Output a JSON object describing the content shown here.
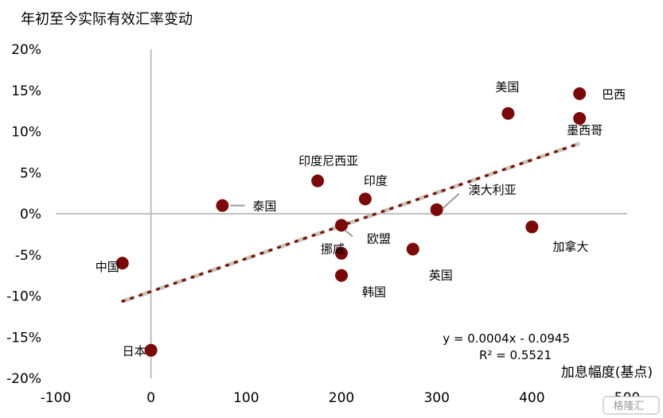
{
  "chart_data": {
    "type": "scatter",
    "title": "年初至今实际有效汇率变动",
    "xlabel": "加息幅度(基点)",
    "ylabel": "",
    "xlim": [
      -100,
      500
    ],
    "ylim": [
      -0.2,
      0.2
    ],
    "x_ticks": [
      "-100",
      "0",
      "100",
      "200",
      "300",
      "400",
      "500"
    ],
    "y_ticks": [
      "20%",
      "15%",
      "10%",
      "5%",
      "0%",
      "-5%",
      "-10%",
      "-15%",
      "-20%"
    ],
    "points": [
      {
        "name": "日本",
        "x": 0,
        "y": -0.166
      },
      {
        "name": "中国",
        "x": -30,
        "y": -0.06
      },
      {
        "name": "泰国",
        "x": 75,
        "y": 0.01
      },
      {
        "name": "印度尼西亚",
        "x": 175,
        "y": 0.04
      },
      {
        "name": "挪威",
        "x": 200,
        "y": -0.048
      },
      {
        "name": "欧盟",
        "x": 200,
        "y": -0.014
      },
      {
        "name": "韩国",
        "x": 200,
        "y": -0.075
      },
      {
        "name": "印度",
        "x": 225,
        "y": 0.018
      },
      {
        "name": "英国",
        "x": 275,
        "y": -0.043
      },
      {
        "name": "澳大利亚",
        "x": 300,
        "y": 0.005
      },
      {
        "name": "美国",
        "x": 375,
        "y": 0.122
      },
      {
        "name": "加拿大",
        "x": 400,
        "y": -0.016
      },
      {
        "name": "巴西",
        "x": 450,
        "y": 0.146
      },
      {
        "name": "墨西哥",
        "x": 450,
        "y": 0.116
      }
    ],
    "trendline": {
      "slope": 0.0004,
      "intercept": -0.0945,
      "x_range": [
        -30,
        450
      ]
    },
    "equation": "y = 0.0004x - 0.0945",
    "r_squared": "R² = 0.5521",
    "colors": {
      "point": "#7a0a0a",
      "trend_dash": "#c8c5b5",
      "trend_dot": "#7a0a0a",
      "axis": "#bfbfbf"
    }
  },
  "watermark": "格隆汇"
}
